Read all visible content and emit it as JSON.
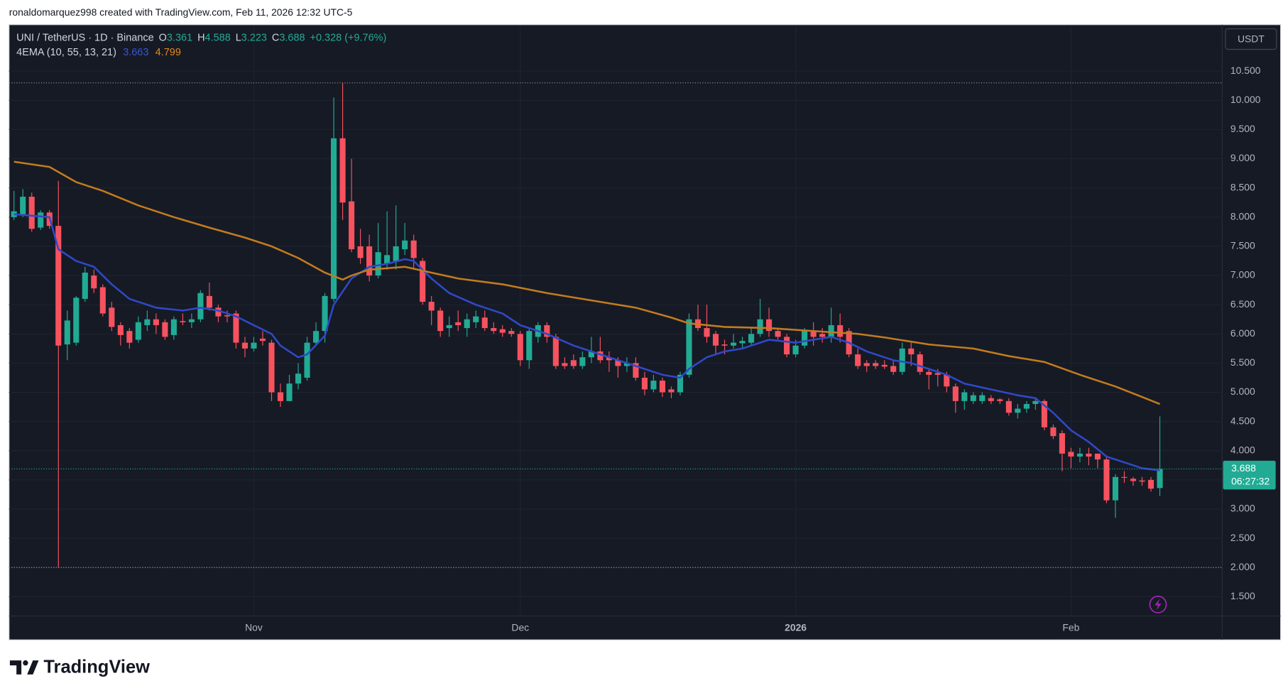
{
  "chart_data": {
    "type": "candlestick",
    "attribution": "ronaldomarquez998 created with TradingView.com, Feb 11, 2026 12:32 UTC-5",
    "symbol": "UNI / TetherUS · 1D · Binance",
    "ohlc_letters": [
      "O",
      "H",
      "L",
      "C"
    ],
    "change": "+0.328 (+9.76%)",
    "indicator": "4EMA (10, 55, 13, 21)",
    "currency": "USDT",
    "countdown": "06:27:32",
    "brand": "TradingView",
    "up_color": "#22ab94",
    "down_color": "#f7525f",
    "grid": true,
    "xlim": [
      -0.556,
      136.02
    ],
    "xticks": [
      {
        "value": 27,
        "label": "Nov"
      },
      {
        "value": 57,
        "label": "Dec"
      },
      {
        "value": 88,
        "label": "2026"
      },
      {
        "value": 119,
        "label": "Feb"
      }
    ],
    "ylim": [
      1.183,
      11.282
    ],
    "yticks": [
      {
        "value": 1.5,
        "label": "1.500"
      },
      {
        "value": 2,
        "label": "2.000"
      },
      {
        "value": 2.5,
        "label": "2.500"
      },
      {
        "value": 3,
        "label": "3.000"
      },
      {
        "value": 3.5,
        "label": "3.500"
      },
      {
        "value": 4,
        "label": "4.000"
      },
      {
        "value": 4.5,
        "label": "4.500"
      },
      {
        "value": 5,
        "label": "5.000"
      },
      {
        "value": 5.5,
        "label": "5.500"
      },
      {
        "value": 6,
        "label": "6.000"
      },
      {
        "value": 6.5,
        "label": "6.500"
      },
      {
        "value": 7,
        "label": "7.000"
      },
      {
        "value": 7.5,
        "label": "7.500"
      },
      {
        "value": 8,
        "label": "8.000"
      },
      {
        "value": 8.5,
        "label": "8.500"
      },
      {
        "value": 9,
        "label": "9.000"
      },
      {
        "value": 9.5,
        "label": "9.500"
      },
      {
        "value": 10,
        "label": "10.000"
      },
      {
        "value": 10.5,
        "label": "10.500"
      }
    ],
    "x": [
      0,
      1,
      2,
      3,
      4,
      5,
      6,
      7,
      8,
      9,
      10,
      11,
      12,
      13,
      14,
      15,
      16,
      17,
      18,
      19,
      20,
      21,
      22,
      23,
      24,
      25,
      26,
      27,
      28,
      29,
      30,
      31,
      32,
      33,
      34,
      35,
      36,
      37,
      38,
      39,
      40,
      41,
      42,
      43,
      44,
      45,
      46,
      47,
      48,
      49,
      50,
      51,
      52,
      53,
      54,
      55,
      56,
      57,
      58,
      59,
      60,
      61,
      62,
      63,
      64,
      65,
      66,
      67,
      68,
      69,
      70,
      71,
      72,
      73,
      74,
      75,
      76,
      77,
      78,
      79,
      80,
      81,
      82,
      83,
      84,
      85,
      86,
      87,
      88,
      89,
      90,
      91,
      92,
      93,
      94,
      95,
      96,
      97,
      98,
      99,
      100,
      101,
      102,
      103,
      104,
      105,
      106,
      107,
      108,
      109,
      110,
      111,
      112,
      113,
      114,
      115,
      116,
      117,
      118,
      119,
      120,
      121,
      122,
      123,
      124,
      125,
      126,
      127,
      128,
      129
    ],
    "open": [
      8.0,
      8.05,
      8.35,
      7.82,
      8.08,
      7.85,
      5.82,
      5.85,
      6.6,
      7.0,
      6.8,
      6.45,
      6.15,
      6.05,
      5.9,
      6.15,
      6.25,
      6.2,
      5.98,
      6.22,
      6.2,
      6.25,
      6.65,
      6.45,
      6.32,
      6.35,
      5.85,
      5.75,
      5.92,
      5.85,
      5.0,
      4.85,
      5.15,
      5.25,
      5.85,
      6.05,
      6.6,
      9.35,
      8.27,
      7.5,
      7.5,
      7.0,
      7.2,
      7.25,
      7.45,
      7.6,
      7.25,
      6.55,
      6.4,
      6.1,
      6.2,
      6.1,
      6.2,
      6.28,
      6.1,
      6.08,
      6.05,
      6.0,
      5.55,
      5.95,
      6.15,
      5.95,
      5.5,
      5.55,
      5.45,
      5.6,
      5.7,
      5.6,
      5.55,
      5.45,
      5.5,
      5.25,
      5.05,
      5.2,
      5.05,
      5.0,
      5.3,
      6.25,
      6.1,
      6.0,
      5.82,
      5.8,
      5.84,
      5.85,
      6.0,
      6.25,
      6.05,
      5.95,
      5.65,
      5.8,
      6.05,
      6.0,
      5.95,
      6.15,
      6.05,
      5.65,
      5.5,
      5.5,
      5.47,
      5.45,
      5.35,
      5.75,
      5.65,
      5.35,
      5.33,
      5.3,
      5.1,
      4.85,
      4.85,
      4.85,
      4.9,
      4.88,
      4.85,
      4.65,
      4.72,
      4.8,
      4.85,
      4.4,
      4.3,
      3.98,
      3.9,
      3.95,
      3.95,
      3.85,
      3.15,
      3.55,
      3.52,
      3.49,
      3.5,
      3.361
    ],
    "high": [
      8.45,
      8.48,
      8.42,
      8.12,
      8.12,
      8.62,
      6.4,
      6.65,
      7.15,
      7.1,
      6.85,
      6.55,
      6.2,
      6.1,
      6.3,
      6.4,
      6.35,
      6.25,
      6.3,
      6.35,
      6.35,
      6.75,
      6.88,
      6.5,
      6.4,
      6.4,
      5.95,
      5.95,
      6.05,
      5.9,
      5.15,
      5.3,
      5.5,
      5.95,
      6.2,
      6.7,
      10.05,
      10.3,
      9.0,
      7.8,
      7.7,
      7.9,
      8.1,
      8.2,
      7.9,
      7.7,
      7.3,
      6.65,
      6.45,
      6.3,
      6.4,
      6.35,
      6.4,
      6.4,
      6.2,
      6.15,
      6.1,
      6.05,
      6.1,
      6.2,
      6.2,
      6.0,
      5.6,
      5.65,
      5.7,
      5.95,
      5.95,
      5.7,
      5.6,
      5.6,
      5.6,
      5.35,
      5.3,
      5.25,
      5.1,
      5.35,
      6.35,
      6.5,
      6.5,
      6.05,
      5.9,
      6.0,
      5.95,
      6.1,
      6.6,
      6.45,
      6.1,
      6.0,
      5.9,
      6.1,
      6.2,
      6.1,
      6.45,
      6.35,
      6.1,
      5.75,
      5.55,
      5.55,
      5.55,
      5.55,
      5.85,
      5.85,
      5.7,
      5.4,
      5.4,
      5.35,
      5.15,
      5.05,
      5.0,
      5.0,
      4.95,
      4.9,
      4.9,
      4.8,
      4.85,
      4.9,
      4.88,
      4.45,
      4.35,
      4.05,
      4.05,
      4.05,
      3.95,
      3.9,
      3.6,
      3.65,
      3.55,
      3.55,
      3.55,
      4.588
    ],
    "low": [
      7.95,
      8.0,
      7.75,
      7.78,
      7.8,
      2.0,
      5.55,
      5.8,
      6.55,
      6.7,
      6.3,
      6.05,
      5.8,
      5.75,
      5.85,
      6.05,
      6.0,
      5.9,
      5.9,
      6.15,
      6.1,
      6.2,
      6.4,
      6.2,
      6.2,
      5.75,
      5.6,
      5.7,
      5.8,
      4.85,
      4.75,
      4.85,
      5.05,
      5.2,
      5.8,
      5.85,
      6.55,
      7.95,
      7.4,
      7.2,
      6.9,
      6.95,
      7.1,
      7.1,
      7.35,
      7.1,
      6.5,
      6.15,
      5.95,
      5.95,
      6.05,
      5.95,
      6.1,
      6.05,
      6.0,
      5.95,
      5.95,
      5.45,
      5.4,
      5.85,
      5.85,
      5.4,
      5.4,
      5.4,
      5.4,
      5.5,
      5.5,
      5.35,
      5.25,
      5.35,
      5.2,
      4.95,
      5.0,
      4.92,
      4.9,
      4.95,
      5.25,
      6.05,
      5.85,
      5.65,
      5.65,
      5.75,
      5.75,
      5.8,
      5.95,
      5.95,
      5.9,
      5.6,
      5.6,
      5.75,
      5.8,
      5.85,
      5.85,
      5.85,
      5.6,
      5.4,
      5.35,
      5.4,
      5.4,
      5.3,
      5.3,
      5.45,
      5.3,
      5.05,
      5.1,
      5.0,
      4.65,
      4.7,
      4.8,
      4.8,
      4.8,
      4.8,
      4.6,
      4.55,
      4.65,
      4.7,
      4.35,
      4.2,
      3.65,
      3.7,
      3.8,
      3.75,
      3.7,
      3.1,
      2.85,
      3.45,
      3.4,
      3.4,
      3.3,
      3.223
    ],
    "close": [
      8.1,
      8.35,
      7.8,
      8.08,
      7.85,
      5.8,
      6.23,
      6.62,
      7.05,
      6.78,
      6.35,
      6.12,
      5.98,
      5.85,
      6.2,
      6.25,
      6.15,
      5.95,
      6.25,
      6.2,
      6.25,
      6.7,
      6.45,
      6.3,
      6.3,
      5.85,
      5.75,
      5.85,
      5.88,
      5.0,
      4.85,
      5.15,
      5.32,
      5.85,
      6.05,
      6.65,
      9.35,
      8.25,
      7.45,
      7.3,
      7.0,
      7.4,
      7.35,
      7.5,
      7.6,
      7.3,
      6.55,
      6.4,
      6.05,
      6.15,
      6.15,
      6.25,
      6.3,
      6.1,
      6.05,
      6.02,
      6.0,
      5.55,
      6.05,
      6.15,
      5.95,
      5.45,
      5.45,
      5.45,
      5.6,
      5.7,
      5.55,
      5.55,
      5.45,
      5.5,
      5.25,
      5.05,
      5.2,
      5.0,
      5.0,
      5.3,
      6.25,
      6.1,
      5.95,
      5.8,
      5.8,
      5.85,
      5.88,
      6.0,
      6.25,
      6.05,
      5.95,
      5.65,
      5.8,
      6.05,
      5.95,
      5.95,
      6.15,
      5.95,
      5.65,
      5.45,
      5.45,
      5.45,
      5.44,
      5.35,
      5.75,
      5.65,
      5.35,
      5.3,
      5.3,
      5.1,
      4.85,
      5.0,
      4.95,
      4.95,
      4.85,
      4.85,
      4.65,
      4.72,
      4.8,
      4.85,
      4.4,
      4.25,
      3.95,
      3.9,
      3.95,
      3.9,
      3.85,
      3.15,
      3.55,
      3.54,
      3.48,
      3.47,
      3.35,
      3.688
    ],
    "series": [
      {
        "color": "#2f49c9",
        "x": [
          0,
          4,
          5,
          7,
          9,
          11,
          13,
          16,
          19,
          21,
          23,
          25,
          27,
          29,
          30,
          32,
          33,
          35,
          36,
          38,
          40,
          42,
          44,
          45,
          47,
          49,
          52,
          55,
          57,
          60,
          63,
          66,
          69,
          71,
          73,
          75,
          76,
          78,
          80,
          82,
          85,
          88,
          90,
          92,
          94,
          96,
          99,
          101,
          103,
          105,
          107,
          110,
          113,
          115,
          117,
          119,
          121,
          123,
          125,
          127,
          129
        ],
        "values": [
          8.05,
          8.0,
          7.45,
          7.25,
          7.15,
          6.85,
          6.6,
          6.45,
          6.4,
          6.45,
          6.4,
          6.3,
          6.15,
          6.0,
          5.8,
          5.6,
          5.65,
          5.97,
          6.5,
          6.95,
          7.15,
          7.2,
          7.28,
          7.25,
          6.95,
          6.7,
          6.5,
          6.35,
          6.15,
          6.0,
          5.8,
          5.65,
          5.5,
          5.4,
          5.3,
          5.25,
          5.4,
          5.6,
          5.7,
          5.75,
          5.9,
          5.85,
          5.9,
          5.95,
          5.85,
          5.7,
          5.55,
          5.5,
          5.4,
          5.3,
          5.15,
          5.05,
          4.95,
          4.9,
          4.65,
          4.35,
          4.15,
          3.9,
          3.8,
          3.7,
          3.663
        ]
      },
      {
        "color": "#c27c1d",
        "x": [
          0,
          4,
          7,
          10,
          14,
          18,
          22,
          26,
          29,
          32,
          35,
          37,
          38,
          40,
          44,
          47,
          50,
          55,
          60,
          66,
          70,
          74,
          76,
          80,
          85,
          90,
          95,
          98,
          103,
          108,
          112,
          116,
          120,
          124,
          127,
          129
        ],
        "values": [
          8.95,
          8.86,
          8.6,
          8.45,
          8.2,
          8.0,
          7.82,
          7.65,
          7.5,
          7.3,
          7.05,
          6.93,
          7.0,
          7.1,
          7.15,
          7.05,
          6.95,
          6.85,
          6.7,
          6.55,
          6.45,
          6.28,
          6.18,
          6.12,
          6.1,
          6.05,
          6.0,
          5.94,
          5.82,
          5.75,
          5.62,
          5.52,
          5.3,
          5.1,
          4.92,
          4.799
        ]
      }
    ]
  }
}
